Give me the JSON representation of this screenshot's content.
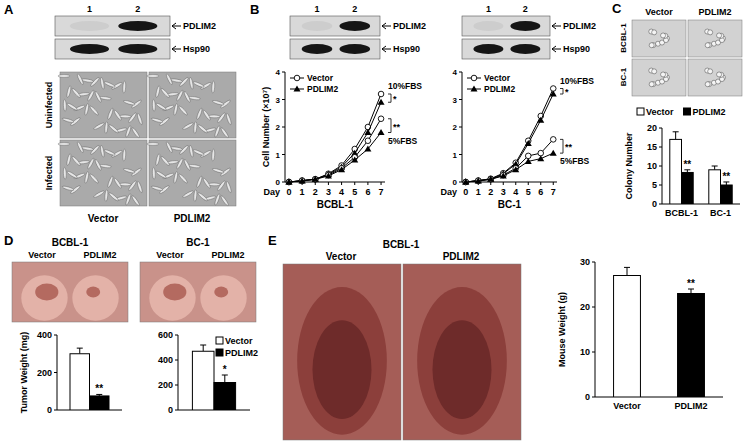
{
  "figure": {
    "A": {
      "letter": "A",
      "blot": {
        "lanes": [
          "1",
          "2"
        ],
        "bands": [
          "PDLIM2",
          "Hsp90"
        ]
      },
      "rows": [
        "Uninfected",
        "Infected"
      ],
      "columns": [
        "Vector",
        "PDLIM2"
      ]
    },
    "B": {
      "letter": "B",
      "blots": [
        {
          "lanes": [
            "1",
            "2"
          ],
          "bands": [
            "PDLIM2",
            "Hsp90"
          ]
        },
        {
          "lanes": [
            "1",
            "2"
          ],
          "bands": [
            "PDLIM2",
            "Hsp90"
          ]
        }
      ]
    },
    "C": {
      "letter": "C",
      "rows": [
        "BCBL-1",
        "BC-1"
      ],
      "columns": [
        "Vector",
        "PDLIM2"
      ]
    },
    "D": {
      "letter": "D",
      "groups": [
        {
          "title": "BCBL-1",
          "columns": [
            "Vector",
            "PDLIM2"
          ]
        },
        {
          "title": "BC-1",
          "columns": [
            "Vector",
            "PDLIM2"
          ]
        }
      ]
    },
    "E": {
      "letter": "E",
      "title": "BCBL-1",
      "columns": [
        "Vector",
        "PDLIM2"
      ]
    }
  },
  "chart_data": [
    {
      "type": "line",
      "title": "BCBL-1",
      "x_label": "Day",
      "y_label": "Cell Number (×10⁷)",
      "x": [
        0,
        1,
        2,
        3,
        4,
        5,
        6,
        7
      ],
      "xlim": [
        -0.3,
        7.3
      ],
      "xticks": [
        0,
        1,
        2,
        3,
        4,
        5,
        6,
        7
      ],
      "ylim": [
        0,
        4
      ],
      "yticks": [
        0,
        1,
        2,
        3,
        4
      ],
      "legend": "top-left",
      "series": [
        {
          "name": "Vector",
          "color": "#000000",
          "marker": "circle",
          "values": [
            0,
            0.05,
            0.1,
            0.3,
            0.6,
            1.2,
            2.0,
            3.2
          ]
        },
        {
          "name": "PDLIM2",
          "color": "#000000",
          "marker": "triangle",
          "values": [
            0,
            0.05,
            0.1,
            0.28,
            0.55,
            1.05,
            1.8,
            2.9
          ]
        },
        {
          "name": "Vector",
          "color": "#000000",
          "marker": "circle",
          "values": [
            0,
            0.05,
            0.1,
            0.25,
            0.5,
            0.9,
            1.5,
            2.3
          ]
        },
        {
          "name": "PDLIM2",
          "color": "#000000",
          "marker": "triangle",
          "values": [
            0,
            0.04,
            0.1,
            0.22,
            0.45,
            0.8,
            1.2,
            1.8
          ]
        }
      ],
      "conditions": [
        {
          "text": "10%FBS",
          "series": [
            0,
            1
          ]
        },
        {
          "text": "5%FBS",
          "series": [
            2,
            3
          ]
        }
      ],
      "annotations": [
        {
          "text": "*",
          "series": [
            0,
            1
          ]
        },
        {
          "text": "**",
          "series": [
            2,
            3
          ]
        }
      ]
    },
    {
      "type": "line",
      "title": "BC-1",
      "x_label": "Day",
      "x": [
        0,
        1,
        2,
        3,
        4,
        5,
        6,
        7
      ],
      "xlim": [
        -0.3,
        7.3
      ],
      "xticks": [
        0,
        1,
        2,
        3,
        4,
        5,
        6,
        7
      ],
      "ylim": [
        0,
        4
      ],
      "yticks": [
        0,
        1,
        2,
        3,
        4
      ],
      "legend": "top-left",
      "series": [
        {
          "name": "Vector",
          "color": "#000000",
          "marker": "circle",
          "values": [
            0,
            0.05,
            0.12,
            0.32,
            0.7,
            1.5,
            2.4,
            3.4
          ]
        },
        {
          "name": "PDLIM2",
          "color": "#000000",
          "marker": "triangle",
          "values": [
            0,
            0.05,
            0.1,
            0.3,
            0.65,
            1.4,
            2.25,
            3.2
          ]
        },
        {
          "name": "Vector",
          "color": "#000000",
          "marker": "circle",
          "values": [
            0,
            0.05,
            0.1,
            0.25,
            0.5,
            0.95,
            1.05,
            1.55
          ]
        },
        {
          "name": "PDLIM2",
          "color": "#000000",
          "marker": "triangle",
          "values": [
            0,
            0.04,
            0.1,
            0.22,
            0.45,
            0.75,
            0.85,
            1.05
          ]
        }
      ],
      "conditions": [
        {
          "text": "10%FBS",
          "series": [
            0,
            1
          ]
        },
        {
          "text": "5%FBS",
          "series": [
            2,
            3
          ]
        }
      ],
      "annotations": [
        {
          "text": "*",
          "series": [
            0,
            1
          ]
        },
        {
          "text": "**",
          "series": [
            2,
            3
          ]
        }
      ]
    },
    {
      "type": "bar",
      "y_label": "Colony Number",
      "categories": [
        "BCBL-1",
        "BC-1"
      ],
      "ylim": [
        0,
        20
      ],
      "yticks": [
        0,
        5,
        10,
        15,
        20
      ],
      "legend": "top",
      "series": [
        {
          "name": "Vector",
          "color": "#ffffff",
          "values": [
            17,
            9
          ],
          "errors": [
            2,
            1
          ]
        },
        {
          "name": "PDLIM2",
          "color": "#000000",
          "values": [
            8.3,
            5
          ],
          "errors": [
            0.7,
            0.8
          ]
        }
      ],
      "annotations": [
        {
          "text": "**",
          "series": 1,
          "category": 0
        },
        {
          "text": "**",
          "series": 1,
          "category": 1
        }
      ]
    },
    {
      "type": "bar",
      "y_label": "Tumor Weight (mg)",
      "categories": [
        null
      ],
      "ylim": [
        0,
        400
      ],
      "yticks": [
        0,
        200,
        400
      ],
      "series": [
        {
          "name": "Vector",
          "color": "#ffffff",
          "values": [
            300
          ],
          "errors": [
            30
          ]
        },
        {
          "name": "PDLIM2",
          "color": "#000000",
          "values": [
            75
          ],
          "errors": [
            8
          ]
        }
      ],
      "annotations": [
        {
          "text": "**",
          "series": 1,
          "category": 0
        }
      ]
    },
    {
      "type": "bar",
      "categories": [
        null
      ],
      "ylim": [
        0,
        600
      ],
      "yticks": [
        0,
        200,
        400,
        600
      ],
      "legend": "top-right",
      "series": [
        {
          "name": "Vector",
          "color": "#ffffff",
          "values": [
            470
          ],
          "errors": [
            50
          ]
        },
        {
          "name": "PDLIM2",
          "color": "#000000",
          "values": [
            220
          ],
          "errors": [
            60
          ]
        }
      ],
      "annotations": [
        {
          "text": "*",
          "series": 1,
          "category": 0
        }
      ]
    },
    {
      "type": "bar",
      "y_label": "Mouse Weight (g)",
      "categories": [
        "Vector",
        "PDLIM2"
      ],
      "values": [
        27,
        23
      ],
      "errors": [
        1.8,
        1
      ],
      "colors": [
        "#ffffff",
        "#000000"
      ],
      "ylim": [
        0,
        30
      ],
      "yticks": [
        0,
        10,
        20,
        30
      ],
      "annotations": [
        {
          "text": "**",
          "category": 1
        }
      ]
    }
  ]
}
